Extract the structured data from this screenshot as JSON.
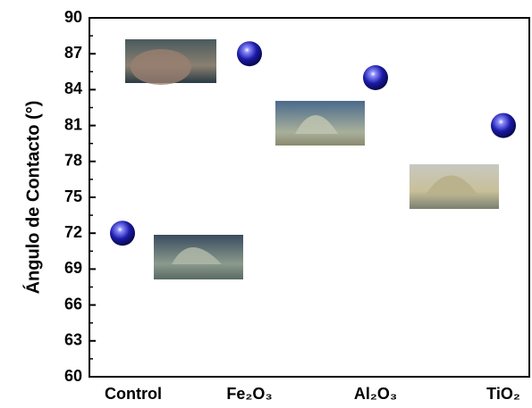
{
  "chart_data": {
    "type": "scatter",
    "y_label": "Ángulo de Contacto (°)",
    "categories": [
      "Control",
      "Fe₂O₃",
      "Al₂O₃",
      "TiO₂"
    ],
    "values": [
      72,
      87,
      85,
      81
    ],
    "color": "#1a1aa8",
    "ylim": [
      60,
      90
    ],
    "yticks": [
      60,
      63,
      66,
      69,
      72,
      75,
      78,
      81,
      84,
      87,
      90
    ]
  }
}
